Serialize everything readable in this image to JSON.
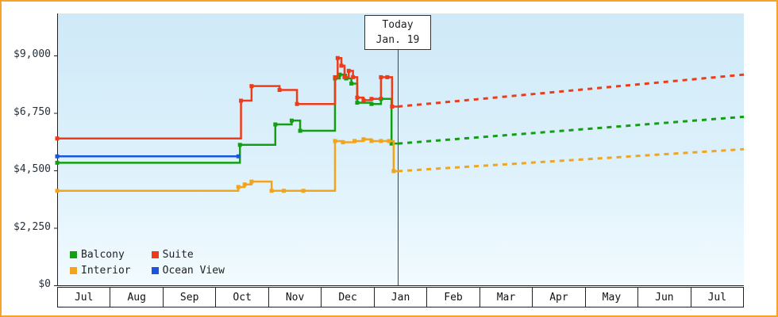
{
  "chart_data": {
    "type": "line",
    "description_hint": "stepped price history with dashed forecast after today marker",
    "grid": false,
    "x_axis": {
      "months": [
        "Jul",
        "Aug",
        "Sep",
        "Oct",
        "Nov",
        "Dec",
        "Jan",
        "Feb",
        "Mar",
        "Apr",
        "May",
        "Jun",
        "Jul"
      ],
      "range_months": [
        0,
        13
      ]
    },
    "y_axis": {
      "ticks": [
        {
          "value": 0,
          "label": "$0"
        },
        {
          "value": 2250,
          "label": "$2,250"
        },
        {
          "value": 4500,
          "label": "$4,500"
        },
        {
          "value": 6750,
          "label": "$6,750"
        },
        {
          "value": 9000,
          "label": "$9,000"
        }
      ],
      "max_labeled_value": 9000
    },
    "today": {
      "label_line1": "Today",
      "label_line2": "Jan. 19",
      "t": 6.45
    },
    "legend": {
      "position": "bottom-left"
    },
    "series": [
      {
        "name": "Balcony",
        "color": "#12a012",
        "history": [
          [
            0,
            4800
          ],
          [
            3.46,
            5500
          ],
          [
            4.13,
            6300
          ],
          [
            4.44,
            6450
          ],
          [
            4.6,
            6050
          ],
          [
            5.26,
            8100
          ],
          [
            5.35,
            8250
          ],
          [
            5.47,
            8100
          ],
          [
            5.57,
            7900
          ],
          [
            5.68,
            7150
          ],
          [
            5.95,
            7100
          ],
          [
            6.13,
            7300
          ],
          [
            6.33,
            5550
          ]
        ],
        "forecast": [
          [
            6.45,
            5550
          ],
          [
            13,
            6600
          ]
        ]
      },
      {
        "name": "Suite",
        "color": "#ee3b1a",
        "history": [
          [
            0,
            5750
          ],
          [
            3.48,
            7230
          ],
          [
            3.68,
            7800
          ],
          [
            4.21,
            7650
          ],
          [
            4.54,
            7100
          ],
          [
            5.26,
            8150
          ],
          [
            5.31,
            8900
          ],
          [
            5.38,
            8600
          ],
          [
            5.44,
            8150
          ],
          [
            5.52,
            8400
          ],
          [
            5.6,
            8150
          ],
          [
            5.68,
            7350
          ],
          [
            5.8,
            7250
          ],
          [
            5.95,
            7300
          ],
          [
            6.13,
            8150
          ],
          [
            6.25,
            8150
          ],
          [
            6.34,
            7000
          ]
        ],
        "forecast": [
          [
            6.45,
            7000
          ],
          [
            13,
            8250
          ]
        ]
      },
      {
        "name": "Interior",
        "color": "#f2a41d",
        "history": [
          [
            0,
            3700
          ],
          [
            3.43,
            3850
          ],
          [
            3.55,
            3950
          ],
          [
            3.68,
            4060
          ],
          [
            4.06,
            3700
          ],
          [
            4.29,
            3700
          ],
          [
            4.66,
            3700
          ],
          [
            5.26,
            5650
          ],
          [
            5.41,
            5600
          ],
          [
            5.63,
            5650
          ],
          [
            5.8,
            5720
          ],
          [
            5.95,
            5650
          ],
          [
            6.13,
            5650
          ],
          [
            6.28,
            5650
          ],
          [
            6.37,
            4470
          ]
        ],
        "forecast": [
          [
            6.45,
            4470
          ],
          [
            13,
            5330
          ]
        ]
      },
      {
        "name": "Ocean View",
        "color": "#1a55dd",
        "history": [
          [
            0,
            5050
          ],
          [
            3.43,
            5050
          ]
        ],
        "forecast": []
      }
    ]
  },
  "colors": {
    "frame_border": "#f5a42a",
    "plot_bg_top": "#cfe9f8",
    "plot_bg_bottom": "#f2fbff",
    "axis": "#222222",
    "today_line": "#444444"
  }
}
